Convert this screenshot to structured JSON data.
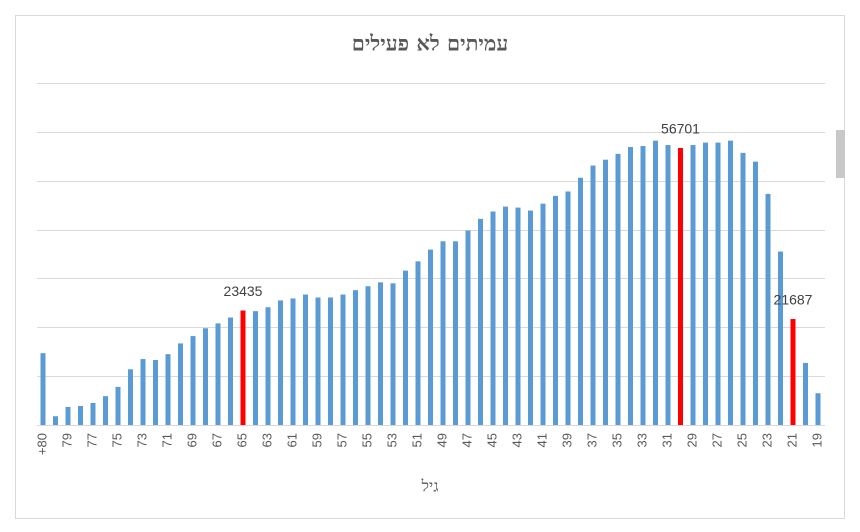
{
  "chart_data": {
    "type": "bar",
    "title": "עמיתים לא פעילים",
    "x_label": "גיל",
    "categories": [
      "+80",
      null,
      "79",
      null,
      "77",
      null,
      "75",
      null,
      "73",
      null,
      "71",
      null,
      "69",
      null,
      "67",
      null,
      "65",
      null,
      "63",
      null,
      "61",
      null,
      "59",
      null,
      "57",
      null,
      "55",
      null,
      "53",
      null,
      "51",
      null,
      "49",
      null,
      "47",
      null,
      "45",
      null,
      "43",
      null,
      "41",
      null,
      "39",
      null,
      "37",
      null,
      "35",
      null,
      "33",
      null,
      "31",
      null,
      "29",
      null,
      "27",
      null,
      "25",
      null,
      "23",
      null,
      "21",
      null,
      "19"
    ],
    "values": [
      14700,
      1800,
      3700,
      3900,
      4500,
      5900,
      7800,
      11400,
      13500,
      13300,
      14500,
      16700,
      18200,
      19800,
      20800,
      22000,
      23435,
      23300,
      24100,
      25500,
      25900,
      26700,
      26100,
      26100,
      26700,
      27600,
      28400,
      29200,
      29000,
      31600,
      33500,
      35900,
      37600,
      37600,
      39800,
      42200,
      43700,
      44700,
      44500,
      43900,
      45300,
      46900,
      47800,
      50600,
      53100,
      54300,
      55500,
      56900,
      57100,
      58200,
      57300,
      56701,
      57300,
      57800,
      57800,
      58200,
      55700,
      53900,
      47300,
      35500,
      21687,
      12700,
      6500
    ],
    "value_labels": [
      null,
      null,
      null,
      null,
      null,
      null,
      null,
      null,
      null,
      null,
      null,
      null,
      null,
      null,
      null,
      null,
      "23435",
      null,
      null,
      null,
      null,
      null,
      null,
      null,
      null,
      null,
      null,
      null,
      null,
      null,
      null,
      null,
      null,
      null,
      null,
      null,
      null,
      null,
      null,
      null,
      null,
      null,
      null,
      null,
      null,
      null,
      null,
      null,
      null,
      null,
      null,
      "56701",
      null,
      null,
      null,
      null,
      null,
      null,
      null,
      null,
      "21687",
      null,
      null
    ],
    "colors": [
      "#5b9bd5",
      "#5b9bd5",
      "#5b9bd5",
      "#5b9bd5",
      "#5b9bd5",
      "#5b9bd5",
      "#5b9bd5",
      "#5b9bd5",
      "#5b9bd5",
      "#5b9bd5",
      "#5b9bd5",
      "#5b9bd5",
      "#5b9bd5",
      "#5b9bd5",
      "#5b9bd5",
      "#5b9bd5",
      "#ff0000",
      "#5b9bd5",
      "#5b9bd5",
      "#5b9bd5",
      "#5b9bd5",
      "#5b9bd5",
      "#5b9bd5",
      "#5b9bd5",
      "#5b9bd5",
      "#5b9bd5",
      "#5b9bd5",
      "#5b9bd5",
      "#5b9bd5",
      "#5b9bd5",
      "#5b9bd5",
      "#5b9bd5",
      "#5b9bd5",
      "#5b9bd5",
      "#5b9bd5",
      "#5b9bd5",
      "#5b9bd5",
      "#5b9bd5",
      "#5b9bd5",
      "#5b9bd5",
      "#5b9bd5",
      "#5b9bd5",
      "#5b9bd5",
      "#5b9bd5",
      "#5b9bd5",
      "#5b9bd5",
      "#5b9bd5",
      "#5b9bd5",
      "#5b9bd5",
      "#5b9bd5",
      "#5b9bd5",
      "#ff0000",
      "#5b9bd5",
      "#5b9bd5",
      "#5b9bd5",
      "#5b9bd5",
      "#5b9bd5",
      "#5b9bd5",
      "#5b9bd5",
      "#5b9bd5",
      "#ff0000",
      "#5b9bd5",
      "#5b9bd5"
    ],
    "ylim": [
      0,
      70000
    ],
    "yticks": [
      0,
      10000,
      20000,
      30000,
      40000,
      50000,
      60000,
      70000
    ],
    "grid": true
  }
}
